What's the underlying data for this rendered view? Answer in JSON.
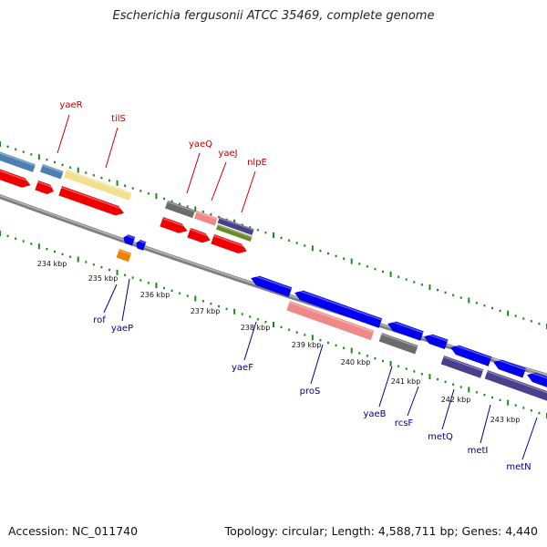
{
  "title": "Escherichia fergusonii ATCC 35469, complete genome",
  "footer": {
    "accession": "Accession: NC_011740",
    "topology": "Topology: circular; Length: 4,588,711 bp; Genes: 4,440"
  },
  "colors": {
    "cds_forward": "#ee0000",
    "cds_reverse": "#0000ee",
    "trna": "#4a7fb0",
    "rrna_like": "#f0e090",
    "gray_feature": "#6b6b6b",
    "pink_feature": "#f08888",
    "purple_feature": "#4a3f8a",
    "olive_feature": "#6a8a2a",
    "orange_feature": "#f08000",
    "gc_tick": "#1c8a1c",
    "backbone": "#8a8a8a"
  },
  "kbp_labels": [
    "234 kbp",
    "235 kbp",
    "236 kbp",
    "237 kbp",
    "238 kbp",
    "239 kbp",
    "240 kbp",
    "241 kbp",
    "242 kbp",
    "243 kbp"
  ],
  "genes_forward": [
    "yaeR",
    "tilS",
    "yaeQ",
    "yaeJ",
    "nlpE"
  ],
  "genes_reverse": [
    "rof",
    "yaeP",
    "yaeF",
    "proS",
    "yaeB",
    "rcsF",
    "metQ",
    "metI",
    "metN"
  ]
}
